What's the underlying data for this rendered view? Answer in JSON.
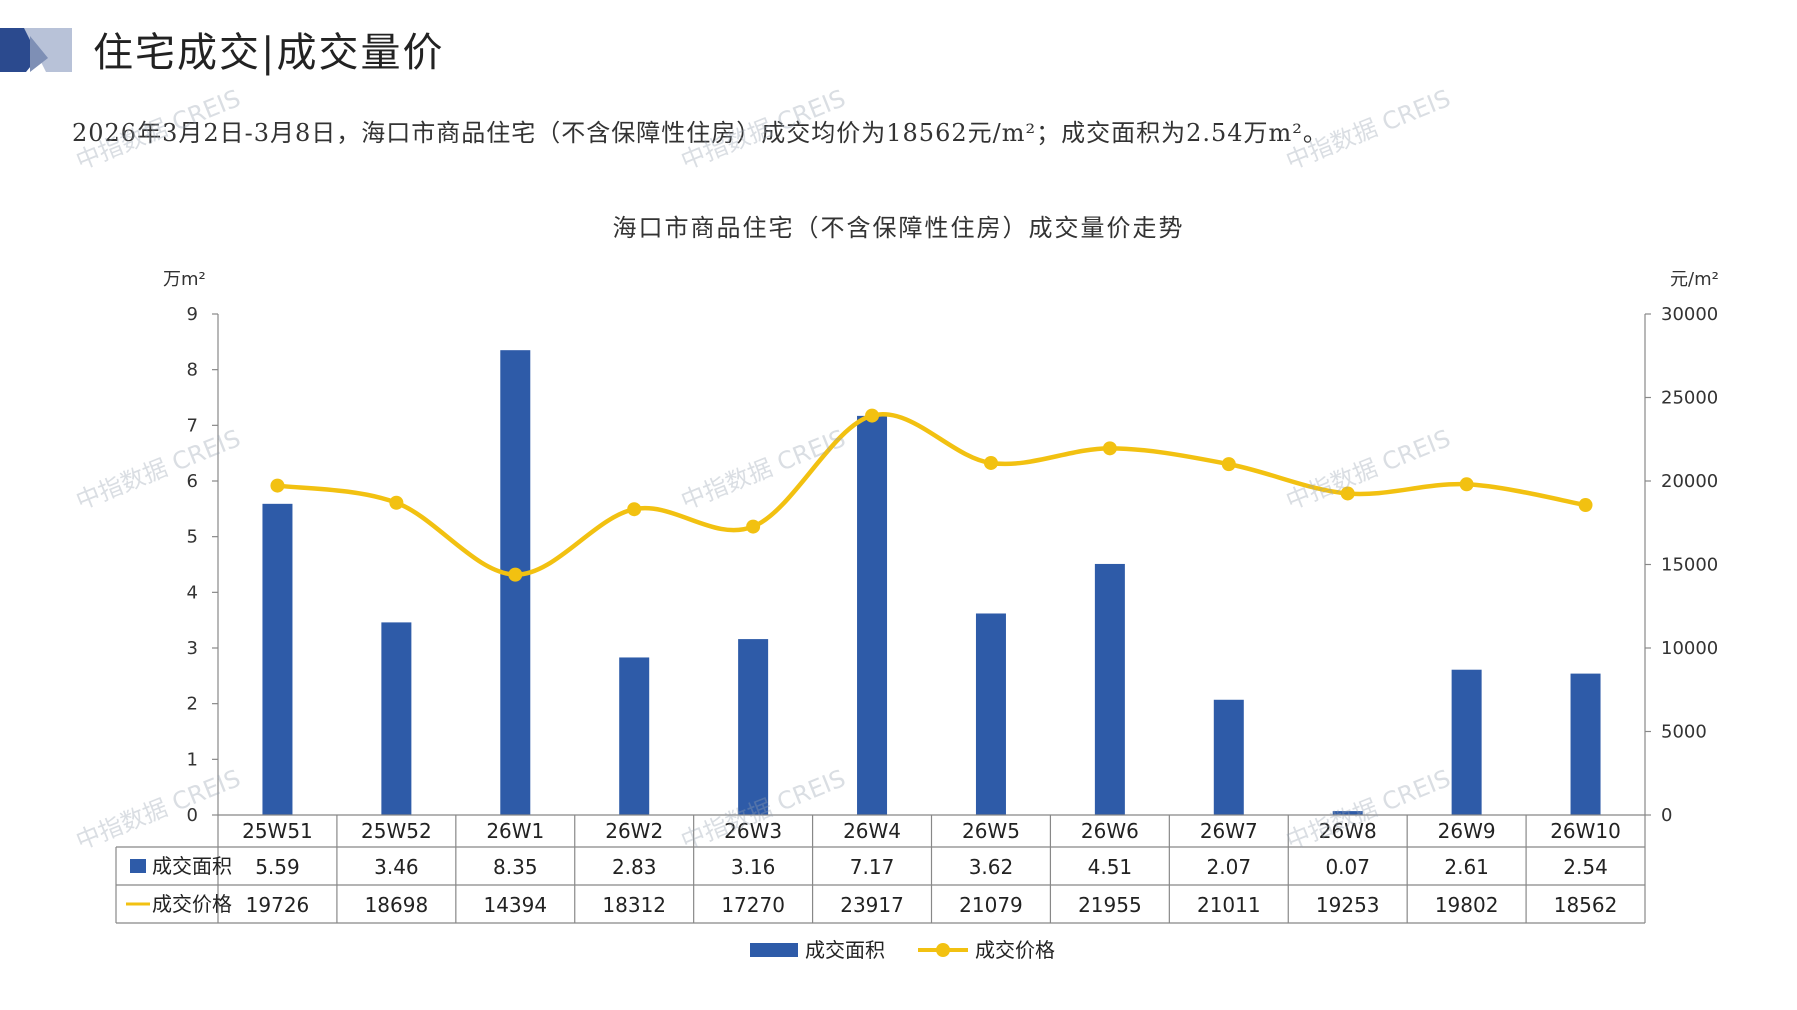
{
  "page": {
    "heading": "住宅成交|成交量价",
    "summary": "2026年3月2日-3月8日，海口市商品住宅（不含保障性住房）成交均价为18562元/m²；成交面积为2.54万m²。",
    "watermark": "中指数据 CREIS"
  },
  "colors": {
    "bar": "#2E5BA8",
    "line": "#F2C111",
    "axis": "#888888",
    "logo_dark": "#2B4A8E",
    "logo_light": "#9AA8C8"
  },
  "chart_data": {
    "type": "bar",
    "title": "海口市商品住宅（不含保障性住房）成交量价走势",
    "categories": [
      "25W51",
      "25W52",
      "26W1",
      "26W2",
      "26W3",
      "26W4",
      "26W5",
      "26W6",
      "26W7",
      "26W8",
      "26W9",
      "26W10"
    ],
    "series": [
      {
        "name": "成交面积",
        "type": "bar",
        "axis": "left",
        "values": [
          5.59,
          3.46,
          8.35,
          2.83,
          3.16,
          7.17,
          3.62,
          4.51,
          2.07,
          0.07,
          2.61,
          2.54
        ],
        "labels": [
          "5.59",
          "3.46",
          "8.35",
          "2.83",
          "3.16",
          "7.17",
          "3.62",
          "4.51",
          "2.07",
          "0.07",
          "2.61",
          "2.54"
        ]
      },
      {
        "name": "成交价格",
        "type": "line",
        "axis": "right",
        "values": [
          19726,
          18698,
          14394,
          18312,
          17270,
          23917,
          21079,
          21955,
          21011,
          19253,
          19802,
          18562
        ],
        "labels": [
          "19726",
          "18698",
          "14394",
          "18312",
          "17270",
          "23917",
          "21079",
          "21955",
          "21011",
          "19253",
          "19802",
          "18562"
        ]
      }
    ],
    "y_left": {
      "unit": "万m²",
      "min": 0,
      "max": 9,
      "ticks": [
        "0",
        "1",
        "2",
        "3",
        "4",
        "5",
        "6",
        "7",
        "8",
        "9"
      ]
    },
    "y_right": {
      "unit": "元/m²",
      "min": 0,
      "max": 30000,
      "ticks": [
        "0",
        "5000",
        "10000",
        "15000",
        "20000",
        "25000",
        "30000"
      ]
    },
    "legend": "bottom-center",
    "data_table": true,
    "grid": false
  }
}
